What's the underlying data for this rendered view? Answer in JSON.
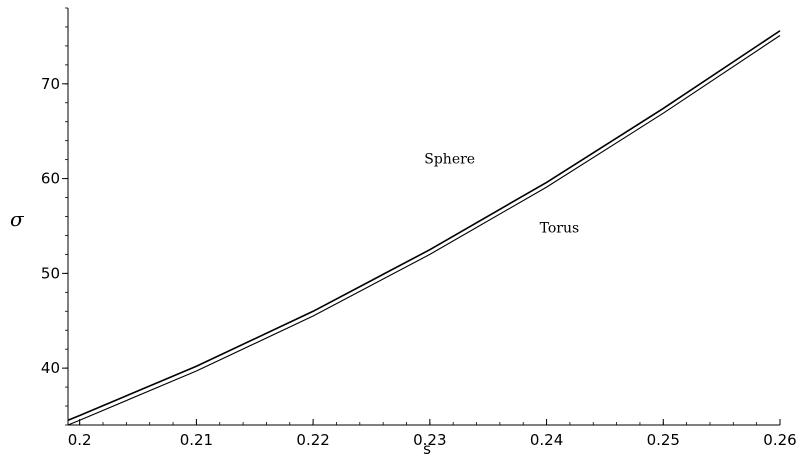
{
  "chart_data": {
    "type": "line",
    "title": "",
    "xlabel": "s",
    "ylabel": "σ",
    "xlim": [
      0.199,
      0.26
    ],
    "ylim": [
      34,
      78
    ],
    "xticks": [
      0.2,
      0.21,
      0.22,
      0.23,
      0.24,
      0.25,
      0.26
    ],
    "xtick_labels": [
      "0.2",
      "0.21",
      "0.22",
      "0.23",
      "0.24",
      "0.25",
      "0.26"
    ],
    "yticks": [
      40,
      50,
      60,
      70
    ],
    "ytick_labels": [
      "40",
      "50",
      "60",
      "70"
    ],
    "grid": false,
    "series": [
      {
        "name": "Sphere",
        "x": [
          0.199,
          0.2,
          0.21,
          0.22,
          0.23,
          0.24,
          0.25,
          0.26
        ],
        "y": [
          34.5,
          35.0,
          40.2,
          46.0,
          52.5,
          59.6,
          67.4,
          75.6
        ]
      },
      {
        "name": "Torus",
        "x": [
          0.199,
          0.2,
          0.21,
          0.22,
          0.23,
          0.24,
          0.25,
          0.26
        ],
        "y": [
          34.0,
          34.5,
          39.7,
          45.5,
          52.0,
          59.1,
          66.9,
          75.1
        ]
      }
    ],
    "annotations": [
      {
        "text": "Sphere",
        "x": 0.2317,
        "y": 61.6
      },
      {
        "text": "Torus",
        "x": 0.2411,
        "y": 54.3
      }
    ]
  }
}
